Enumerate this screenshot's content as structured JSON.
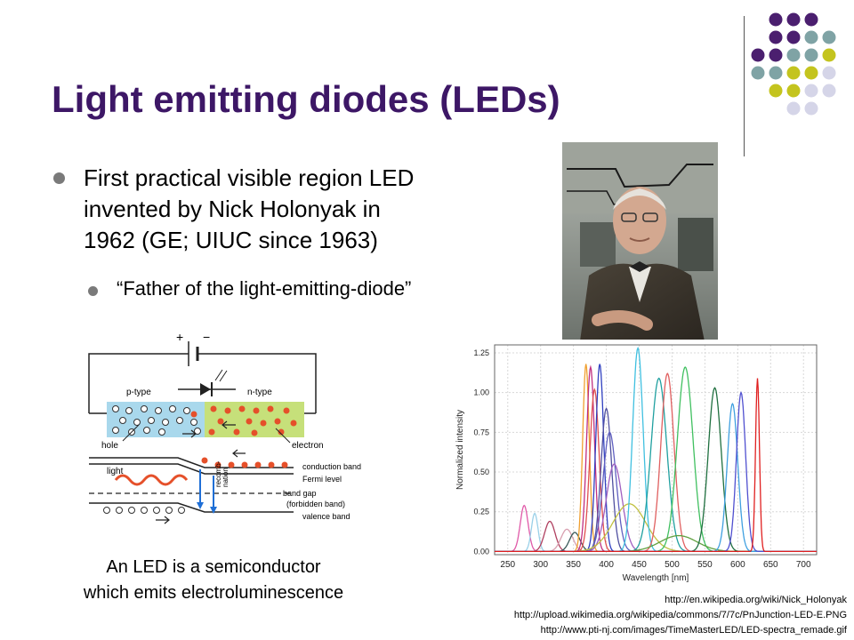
{
  "slide": {
    "title": "Light emitting diodes (LEDs)",
    "bullet1": [
      "First practical visible region LED",
      "invented by Nick Holonyak in",
      "1962 (GE; UIUC since 1963)"
    ],
    "subbullet": "“Father of the light-emitting-diode”",
    "caption": [
      "An LED is a semiconductor",
      "which emits electroluminescence"
    ],
    "sources": [
      "http://en.wikipedia.org/wiki/Nick_Holonyak",
      "http://upload.wikimedia.org/wikipedia/commons/7/7c/PnJunction-LED-E.PNG",
      "http://www.pti-nj.com/images/TimeMasterLED/LED-spectra_remade.gif"
    ]
  },
  "diagram": {
    "plus": "+",
    "minus": "−",
    "p_type": "p-type",
    "n_type": "n-type",
    "hole": "hole",
    "electron": "electron",
    "light": "light",
    "conduction_band": "conduction band",
    "fermi_level": "Fermi level",
    "band_gap": "band gap",
    "forbidden_band": "(forbidden band)",
    "valence_band": "valence band",
    "recombination": [
      "recomb-",
      "nation"
    ]
  },
  "chart_data": {
    "type": "line",
    "xlabel": "Wavelength [nm]",
    "ylabel": "Normalized intensity",
    "xlim": [
      230,
      720
    ],
    "ylim": [
      -0.02,
      1.3
    ],
    "xticks": [
      250,
      300,
      350,
      400,
      450,
      500,
      550,
      600,
      650,
      700
    ],
    "yticks": [
      "0.00",
      "0.25",
      "0.50",
      "0.75",
      "1.00",
      "1.25"
    ],
    "series": [
      {
        "peak": 275,
        "height": 0.29,
        "width": 6,
        "color": "#e05aa8"
      },
      {
        "peak": 291,
        "height": 0.24,
        "width": 5,
        "color": "#9ad0e8"
      },
      {
        "peak": 314,
        "height": 0.19,
        "width": 8,
        "color": "#b04060"
      },
      {
        "peak": 340,
        "height": 0.14,
        "width": 9,
        "color": "#d9a0b0"
      },
      {
        "peak": 352,
        "height": 0.12,
        "width": 8,
        "color": "#3a5a5a"
      },
      {
        "peak": 369,
        "height": 1.18,
        "width": 5,
        "color": "#f0a030"
      },
      {
        "peak": 376,
        "height": 1.16,
        "width": 6,
        "color": "#c03080"
      },
      {
        "peak": 382,
        "height": 1.02,
        "width": 7,
        "color": "#e05050"
      },
      {
        "peak": 390,
        "height": 1.18,
        "width": 6,
        "color": "#3040c0"
      },
      {
        "peak": 400,
        "height": 0.9,
        "width": 8,
        "color": "#5050a0"
      },
      {
        "peak": 405,
        "height": 0.75,
        "width": 10,
        "color": "#6060c0"
      },
      {
        "peak": 412,
        "height": 0.55,
        "width": 12,
        "color": "#a060c0"
      },
      {
        "peak": 435,
        "height": 0.3,
        "width": 25,
        "color": "#c0c040"
      },
      {
        "peak": 448,
        "height": 1.28,
        "width": 8,
        "color": "#40c0e0"
      },
      {
        "peak": 480,
        "height": 1.09,
        "width": 12,
        "color": "#20a0a0"
      },
      {
        "peak": 493,
        "height": 1.12,
        "width": 10,
        "color": "#e06060"
      },
      {
        "peak": 520,
        "height": 1.16,
        "width": 12,
        "color": "#40c060"
      },
      {
        "peak": 510,
        "height": 0.1,
        "width": 28,
        "color": "#60a040"
      },
      {
        "peak": 565,
        "height": 1.03,
        "width": 10,
        "color": "#207040"
      },
      {
        "peak": 592,
        "height": 0.93,
        "width": 8,
        "color": "#40a0e0"
      },
      {
        "peak": 605,
        "height": 1.0,
        "width": 7,
        "color": "#5050d0"
      },
      {
        "peak": 630,
        "height": 1.09,
        "width": 3,
        "color": "#e02020"
      }
    ]
  },
  "decor": {
    "dot_colors": [
      "#4b1f6f",
      "#7fa3a5",
      "#c4c41e",
      "#d5d5e8"
    ]
  }
}
